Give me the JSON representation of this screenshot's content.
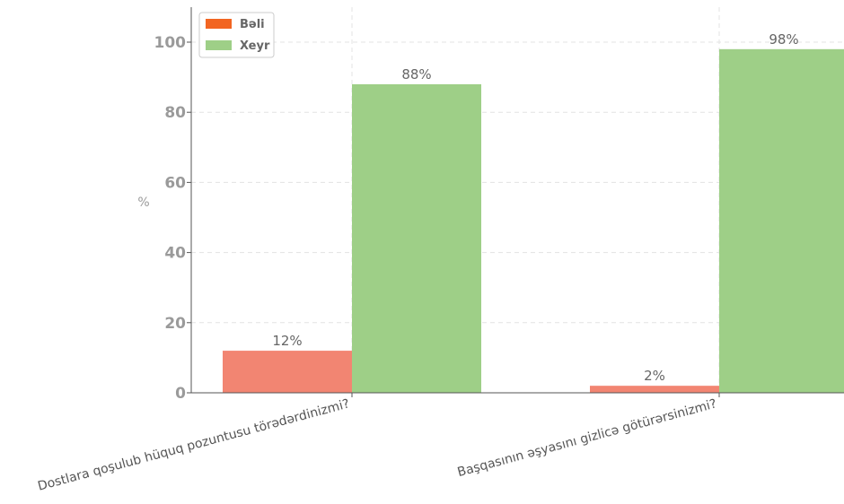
{
  "chart_data": {
    "type": "bar",
    "title": "",
    "xlabel": "",
    "ylabel": "%",
    "ylim": [
      0,
      110
    ],
    "yticks": [
      0,
      20,
      40,
      60,
      80,
      100
    ],
    "grid": true,
    "legend_position": "top-left",
    "categories": [
      "Dostlara qoşulub hüquq pozuntusu törədərdinizmi?",
      "Başqasının əşyasını gizlicə götürərsinizmi?"
    ],
    "series": [
      {
        "name": "Bəli",
        "values": [
          12,
          2
        ],
        "labels": [
          "12%",
          "2%"
        ],
        "color": "#f28572",
        "legend_color": "#f26522"
      },
      {
        "name": "Xeyr",
        "values": [
          88,
          98
        ],
        "labels": [
          "88%",
          "98%"
        ],
        "color": "#9ecf87",
        "legend_color": "#9ecf87"
      }
    ]
  }
}
